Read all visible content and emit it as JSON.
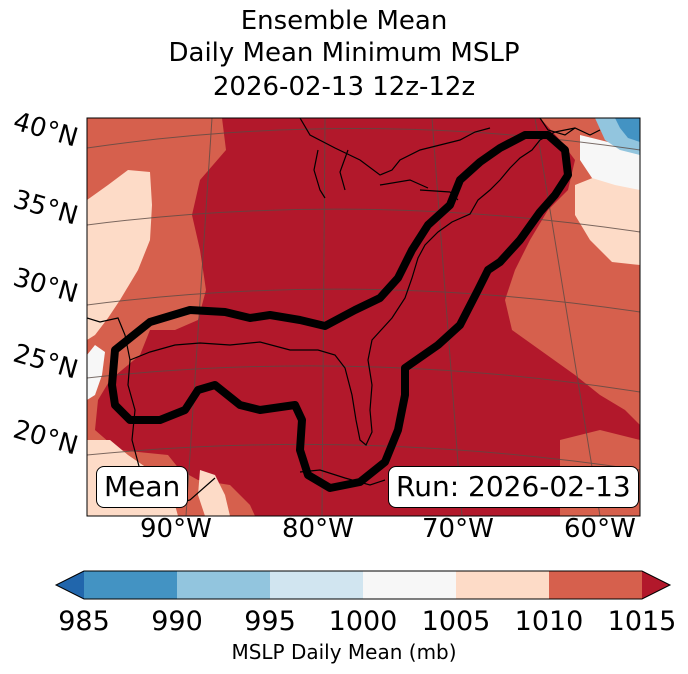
{
  "title": {
    "line1": "Ensemble Mean",
    "line2": "Daily Mean Minimum MSLP",
    "line3": "2026-02-13 12z-12z"
  },
  "map": {
    "lat_labels": [
      "40°N",
      "35°N",
      "30°N",
      "25°N",
      "20°N"
    ],
    "lon_labels": [
      "90°W",
      "80°W",
      "70°W",
      "60°W"
    ],
    "inset_left": "Mean",
    "inset_right": "Run: 2026-02-13",
    "fill_colors": {
      "c985": "#2166ac",
      "c990": "#4393c3",
      "c995": "#92c5de",
      "c1000": "#d1e5f0",
      "c1005": "#f7f7f7",
      "c1010": "#fddbc7",
      "c1015": "#d6604d",
      "c1020": "#b2182b"
    }
  },
  "colorbar": {
    "ticks": [
      "985",
      "990",
      "995",
      "1000",
      "1005",
      "1010",
      "1015"
    ],
    "label": "MSLP Daily Mean (mb)",
    "colors": [
      "#2166ac",
      "#4393c3",
      "#92c5de",
      "#d1e5f0",
      "#f7f7f7",
      "#fddbc7",
      "#d6604d",
      "#b2182b"
    ]
  }
}
